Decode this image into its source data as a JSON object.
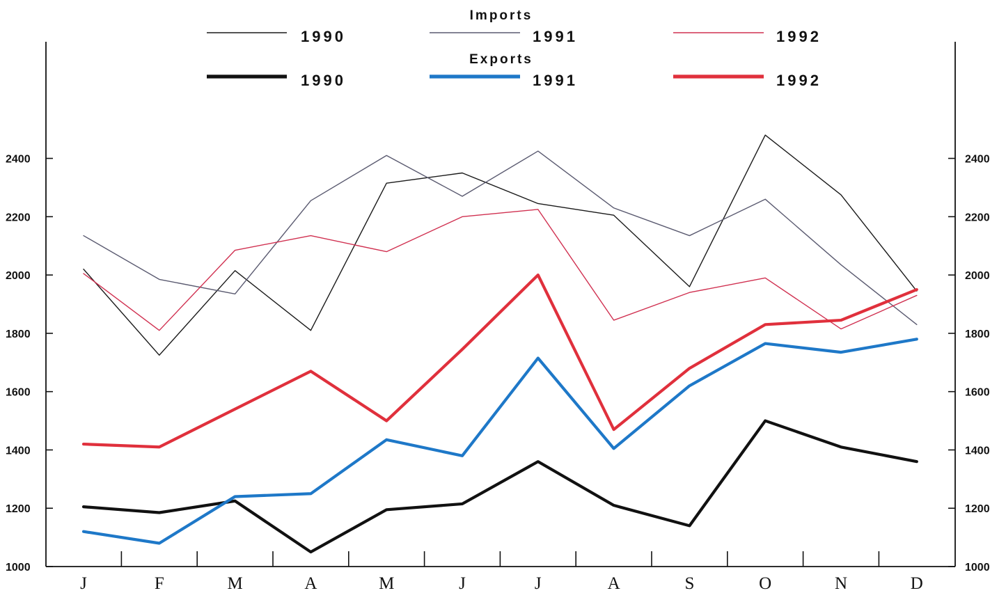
{
  "chart_data": {
    "type": "line",
    "categories": [
      "J",
      "F",
      "M",
      "A",
      "M",
      "J",
      "J",
      "A",
      "S",
      "O",
      "N",
      "D"
    ],
    "ylim": [
      1000,
      2800
    ],
    "yticks": [
      1000,
      1200,
      1400,
      1600,
      1800,
      2000,
      2200,
      2400
    ],
    "ytick_labels": [
      "1000",
      "1200",
      "1400",
      "1600",
      "1800",
      "2000",
      "2200",
      "2400"
    ],
    "grid": false,
    "legend_placement": "top",
    "legend_groups": [
      {
        "title": "Imports",
        "width": "thin"
      },
      {
        "title": "Exports",
        "width": "thick"
      }
    ],
    "series": [
      {
        "group": "Imports",
        "name": "1990",
        "color": "#1a1a1a",
        "width": "thin",
        "values": [
          2020,
          1725,
          2015,
          1810,
          2315,
          2350,
          2245,
          2205,
          1960,
          2480,
          2275,
          1945
        ]
      },
      {
        "group": "Imports",
        "name": "1991",
        "color": "#5a5a70",
        "width": "thin",
        "values": [
          2135,
          1985,
          1935,
          2255,
          2410,
          2270,
          2425,
          2230,
          2135,
          2260,
          2035,
          1830
        ]
      },
      {
        "group": "Imports",
        "name": "1992",
        "color": "#d03050",
        "width": "thin",
        "values": [
          2005,
          1810,
          2085,
          2135,
          2080,
          2200,
          2225,
          1845,
          1940,
          1990,
          1815,
          1930
        ]
      },
      {
        "group": "Exports",
        "name": "1990",
        "color": "#111111",
        "width": "thick",
        "values": [
          1205,
          1185,
          1225,
          1050,
          1195,
          1215,
          1360,
          1210,
          1140,
          1500,
          1410,
          1360
        ]
      },
      {
        "group": "Exports",
        "name": "1991",
        "color": "#1e78c8",
        "width": "thick",
        "values": [
          1120,
          1080,
          1240,
          1250,
          1435,
          1380,
          1715,
          1405,
          1620,
          1765,
          1735,
          1780
        ]
      },
      {
        "group": "Exports",
        "name": "1992",
        "color": "#e0303c",
        "width": "thick",
        "values": [
          1420,
          1410,
          1540,
          1670,
          1500,
          1745,
          2000,
          1470,
          1680,
          1830,
          1845,
          1950
        ]
      }
    ]
  }
}
